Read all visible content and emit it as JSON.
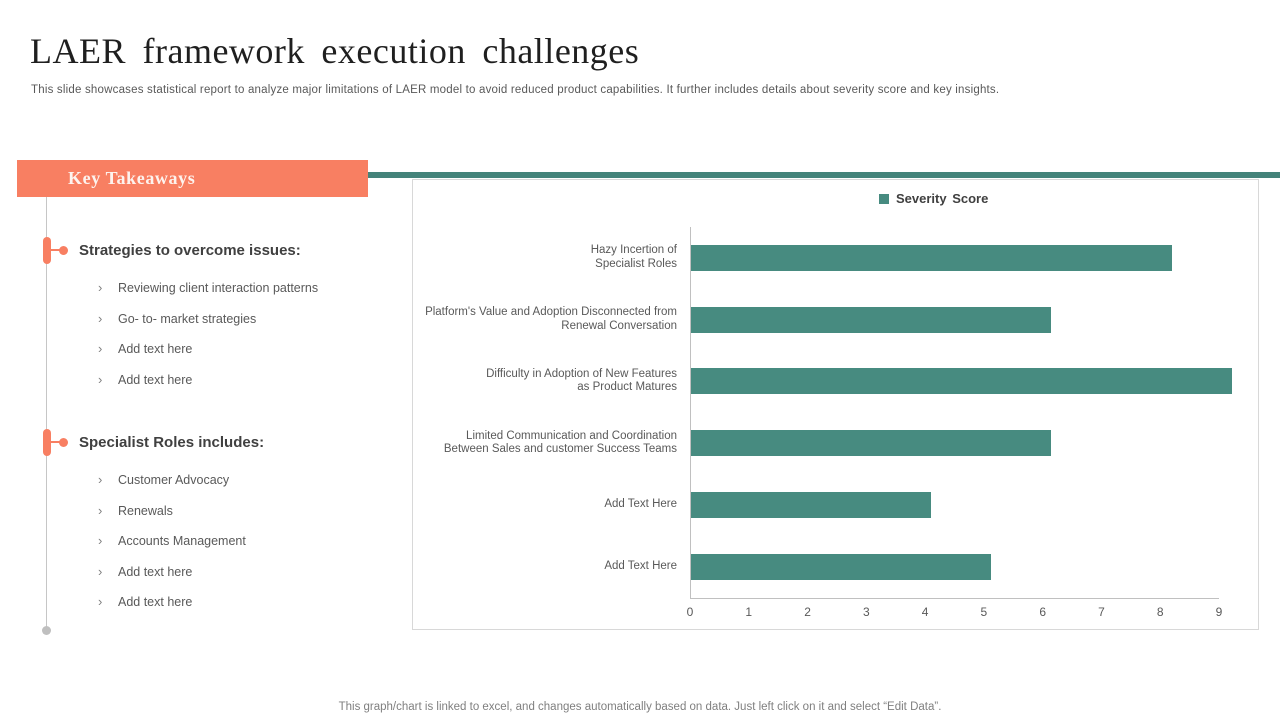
{
  "slide": {
    "title": "LAER framework execution challenges",
    "subtitle": "This slide showcases statistical report to analyze  major limitations of LAER model to avoid reduced product capabilities. It further includes details about severity score and key insights.",
    "footer": "This graph/chart is linked to excel,  and changes automatically based on data. Just left click on it and select “Edit Data”."
  },
  "key_takeaways": {
    "header": "Key Takeaways",
    "bullet_glyph": "›",
    "sections": [
      {
        "heading": "Strategies to overcome issues:",
        "items": [
          "Reviewing  client interaction patterns",
          "Go- to- market strategies",
          "Add text here",
          "Add text here"
        ]
      },
      {
        "heading": "Specialist Roles includes:",
        "items": [
          "Customer Advocacy",
          "Renewals",
          "Accounts Management",
          "Add text here",
          "Add text here"
        ]
      }
    ]
  },
  "chart_data": {
    "type": "bar",
    "orientation": "horizontal",
    "title": "",
    "legend_position": "top",
    "grid": false,
    "categories": [
      "Hazy  Incertion of\nSpecialist Roles",
      "Platform's Value and Adoption Disconnected from\nRenewal Conversation",
      "Difficulty in Adoption of New Features\nas Product Matures",
      "Limited Communication and Coordination\nBetween Sales and customer Success Teams",
      "Add Text Here",
      "Add Text Here"
    ],
    "series": [
      {
        "name": "Severity Score",
        "values": [
          8,
          6,
          9,
          6,
          4,
          5
        ]
      }
    ],
    "xlim": [
      0,
      9
    ],
    "x_ticks": [
      0,
      1,
      2,
      3,
      4,
      5,
      6,
      7,
      8,
      9
    ],
    "bar_color": "#478B80"
  },
  "colors": {
    "accent_coral": "#F87F62",
    "accent_teal": "#478B80",
    "divider_teal": "#44837A",
    "text_dark": "#404040",
    "text_gray": "#595959",
    "border_gray": "#D8D8D8",
    "axis_gray": "#C0C0C0"
  }
}
